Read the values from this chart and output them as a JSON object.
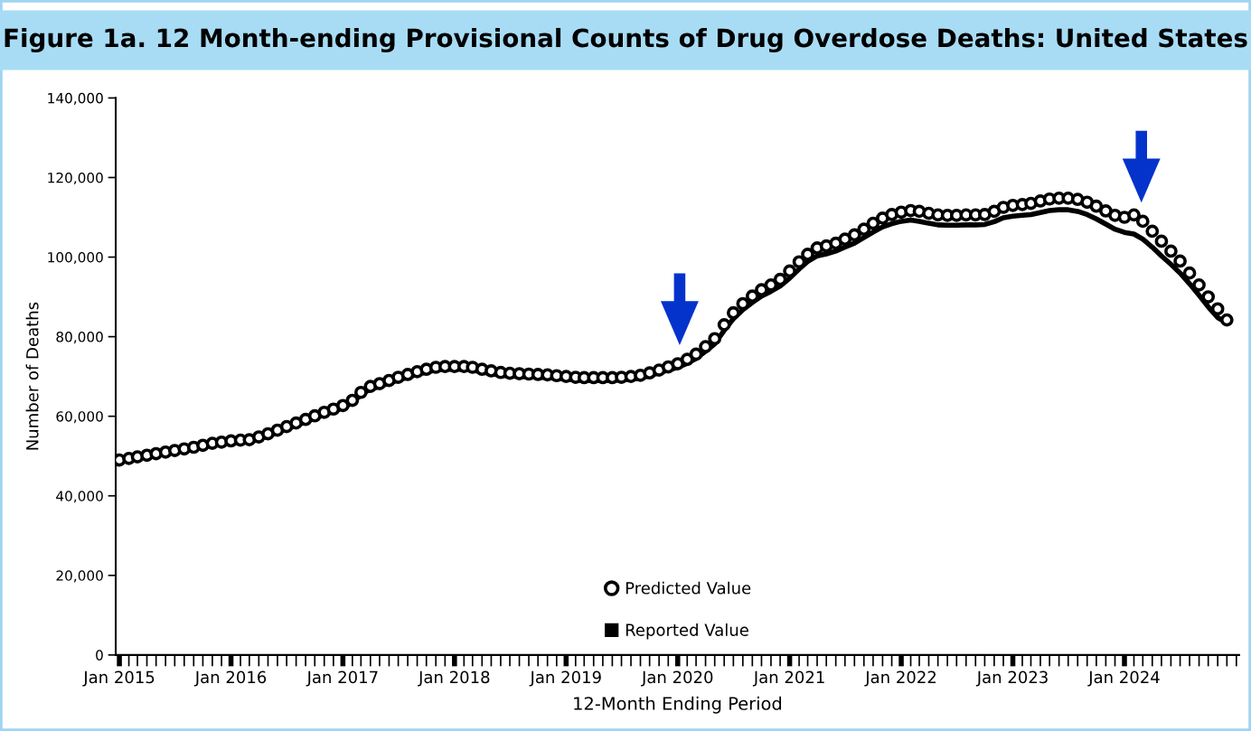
{
  "chart_data": {
    "type": "scatter",
    "title": "Figure 1a. 12 Month-ending Provisional Counts of Drug Overdose Deaths: United States",
    "xlabel": "12-Month Ending Period",
    "ylabel": "Number of Deaths",
    "x": [
      "2015-01",
      "2015-02",
      "2015-03",
      "2015-04",
      "2015-05",
      "2015-06",
      "2015-07",
      "2015-08",
      "2015-09",
      "2015-10",
      "2015-11",
      "2015-12",
      "2016-01",
      "2016-02",
      "2016-03",
      "2016-04",
      "2016-05",
      "2016-06",
      "2016-07",
      "2016-08",
      "2016-09",
      "2016-10",
      "2016-11",
      "2016-12",
      "2017-01",
      "2017-02",
      "2017-03",
      "2017-04",
      "2017-05",
      "2017-06",
      "2017-07",
      "2017-08",
      "2017-09",
      "2017-10",
      "2017-11",
      "2017-12",
      "2018-01",
      "2018-02",
      "2018-03",
      "2018-04",
      "2018-05",
      "2018-06",
      "2018-07",
      "2018-08",
      "2018-09",
      "2018-10",
      "2018-11",
      "2018-12",
      "2019-01",
      "2019-02",
      "2019-03",
      "2019-04",
      "2019-05",
      "2019-06",
      "2019-07",
      "2019-08",
      "2019-09",
      "2019-10",
      "2019-11",
      "2019-12",
      "2020-01",
      "2020-02",
      "2020-03",
      "2020-04",
      "2020-05",
      "2020-06",
      "2020-07",
      "2020-08",
      "2020-09",
      "2020-10",
      "2020-11",
      "2020-12",
      "2021-01",
      "2021-02",
      "2021-03",
      "2021-04",
      "2021-05",
      "2021-06",
      "2021-07",
      "2021-08",
      "2021-09",
      "2021-10",
      "2021-11",
      "2021-12",
      "2022-01",
      "2022-02",
      "2022-03",
      "2022-04",
      "2022-05",
      "2022-06",
      "2022-07",
      "2022-08",
      "2022-09",
      "2022-10",
      "2022-11",
      "2022-12",
      "2023-01",
      "2023-02",
      "2023-03",
      "2023-04",
      "2023-05",
      "2023-06",
      "2023-07",
      "2023-08",
      "2023-09",
      "2023-10",
      "2023-11",
      "2023-12",
      "2024-01",
      "2024-02",
      "2024-03",
      "2024-04",
      "2024-05",
      "2024-06",
      "2024-07",
      "2024-08",
      "2024-09",
      "2024-10",
      "2024-11",
      "2024-12"
    ],
    "series": [
      {
        "name": "Predicted Value",
        "marker": "circle",
        "color": "#000000",
        "values": [
          49000,
          49400,
          49800,
          50200,
          50600,
          51000,
          51400,
          51800,
          52200,
          52700,
          53200,
          53500,
          53800,
          54000,
          54100,
          54800,
          55600,
          56500,
          57400,
          58300,
          59200,
          60100,
          61000,
          61800,
          62700,
          64000,
          66000,
          67500,
          68200,
          69000,
          69800,
          70500,
          71200,
          71800,
          72300,
          72500,
          72500,
          72500,
          72300,
          71800,
          71400,
          71000,
          70800,
          70700,
          70600,
          70500,
          70400,
          70200,
          70000,
          69800,
          69700,
          69700,
          69700,
          69700,
          69800,
          70000,
          70300,
          70900,
          71600,
          72400,
          73200,
          74300,
          75600,
          77500,
          79500,
          83000,
          86000,
          88300,
          90200,
          91800,
          93000,
          94400,
          96500,
          98800,
          100700,
          102300,
          102800,
          103500,
          104500,
          105600,
          107000,
          108500,
          109800,
          110700,
          111300,
          111700,
          111500,
          111000,
          110600,
          110500,
          110500,
          110600,
          110600,
          110700,
          111500,
          112500,
          113000,
          113200,
          113500,
          114100,
          114600,
          114800,
          114800,
          114500,
          113800,
          112800,
          111600,
          110500,
          110000,
          110600,
          109000,
          106500,
          104000,
          101500,
          99000,
          96000,
          93000,
          90000,
          87000,
          84200
        ]
      },
      {
        "name": "Reported Value",
        "type": "line",
        "color": "#000000",
        "values": [
          48600,
          49000,
          49400,
          49800,
          50200,
          50600,
          51000,
          51400,
          51800,
          52300,
          52700,
          53000,
          53300,
          53500,
          53600,
          54200,
          55000,
          55900,
          56800,
          57700,
          58600,
          59500,
          60400,
          61200,
          62100,
          63400,
          65400,
          66800,
          67500,
          68300,
          69100,
          69800,
          70500,
          71100,
          71600,
          71800,
          71800,
          71800,
          71600,
          71100,
          70700,
          70300,
          70100,
          70000,
          69900,
          69800,
          69700,
          69500,
          69300,
          69100,
          69000,
          69000,
          69000,
          69000,
          69100,
          69300,
          69600,
          70200,
          70900,
          71600,
          72300,
          73300,
          74500,
          76300,
          78200,
          81600,
          84500,
          86800,
          88600,
          90200,
          91400,
          92700,
          94700,
          97000,
          98900,
          100300,
          100800,
          101500,
          102500,
          103500,
          104900,
          106300,
          107600,
          108400,
          109000,
          109300,
          109000,
          108500,
          108100,
          108000,
          108000,
          108100,
          108100,
          108200,
          108900,
          109900,
          110300,
          110500,
          110700,
          111200,
          111700,
          111900,
          111900,
          111500,
          110700,
          109600,
          108300,
          107000,
          106200,
          105800,
          104500,
          102500,
          100300,
          98200,
          96000,
          93300,
          90400,
          87500,
          84800,
          83500
        ]
      }
    ],
    "xlim": [
      "2014-12-20",
      "2025-01-10"
    ],
    "xticks": [
      {
        "value": "2015-01",
        "label": "Jan 2015"
      },
      {
        "value": "2016-01",
        "label": "Jan 2016"
      },
      {
        "value": "2017-01",
        "label": "Jan 2017"
      },
      {
        "value": "2018-01",
        "label": "Jan 2018"
      },
      {
        "value": "2019-01",
        "label": "Jan 2019"
      },
      {
        "value": "2020-01",
        "label": "Jan 2020"
      },
      {
        "value": "2021-01",
        "label": "Jan 2021"
      },
      {
        "value": "2022-01",
        "label": "Jan 2022"
      },
      {
        "value": "2023-01",
        "label": "Jan 2023"
      },
      {
        "value": "2024-01",
        "label": "Jan 2024"
      }
    ],
    "ylim": [
      0,
      140000
    ],
    "yticks": [
      {
        "value": 0,
        "label": "0"
      },
      {
        "value": 20000,
        "label": "20,000"
      },
      {
        "value": 40000,
        "label": "40,000"
      },
      {
        "value": 60000,
        "label": "60,000"
      },
      {
        "value": 80000,
        "label": "80,000"
      },
      {
        "value": 100000,
        "label": "100,000"
      },
      {
        "value": 120000,
        "label": "120,000"
      },
      {
        "value": 140000,
        "label": "140,000"
      }
    ],
    "grid": false,
    "legend": "bottom"
  }
}
